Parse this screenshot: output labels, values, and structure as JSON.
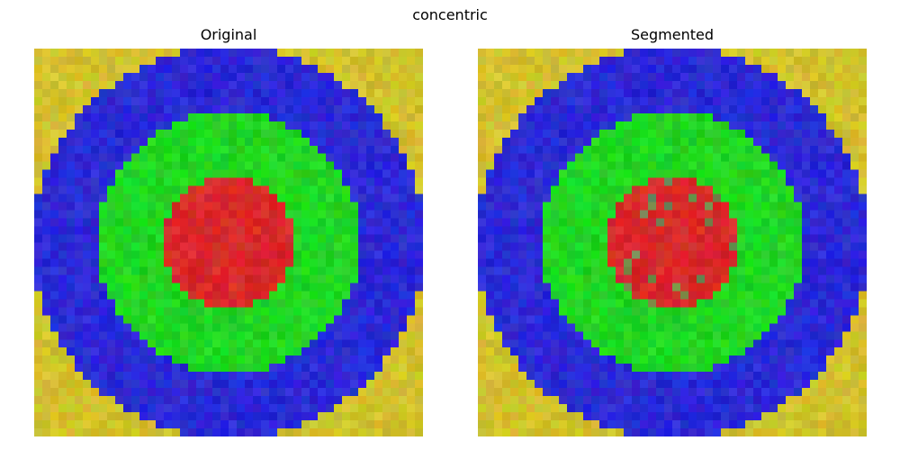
{
  "figure": {
    "title": "concentric"
  },
  "panels": [
    {
      "title": "Original"
    },
    {
      "title": "Segmented"
    }
  ],
  "colors": {
    "outer": "#d2c22c",
    "ring": "#2b2ad6",
    "inner_ring": "#22d622",
    "center": "#d82a2a",
    "misclassified": "#6e8a4e"
  },
  "image": {
    "grid_cells": 48,
    "description_of_regions": [
      "yellow background",
      "blue ring",
      "green ring",
      "red center disk"
    ]
  }
}
